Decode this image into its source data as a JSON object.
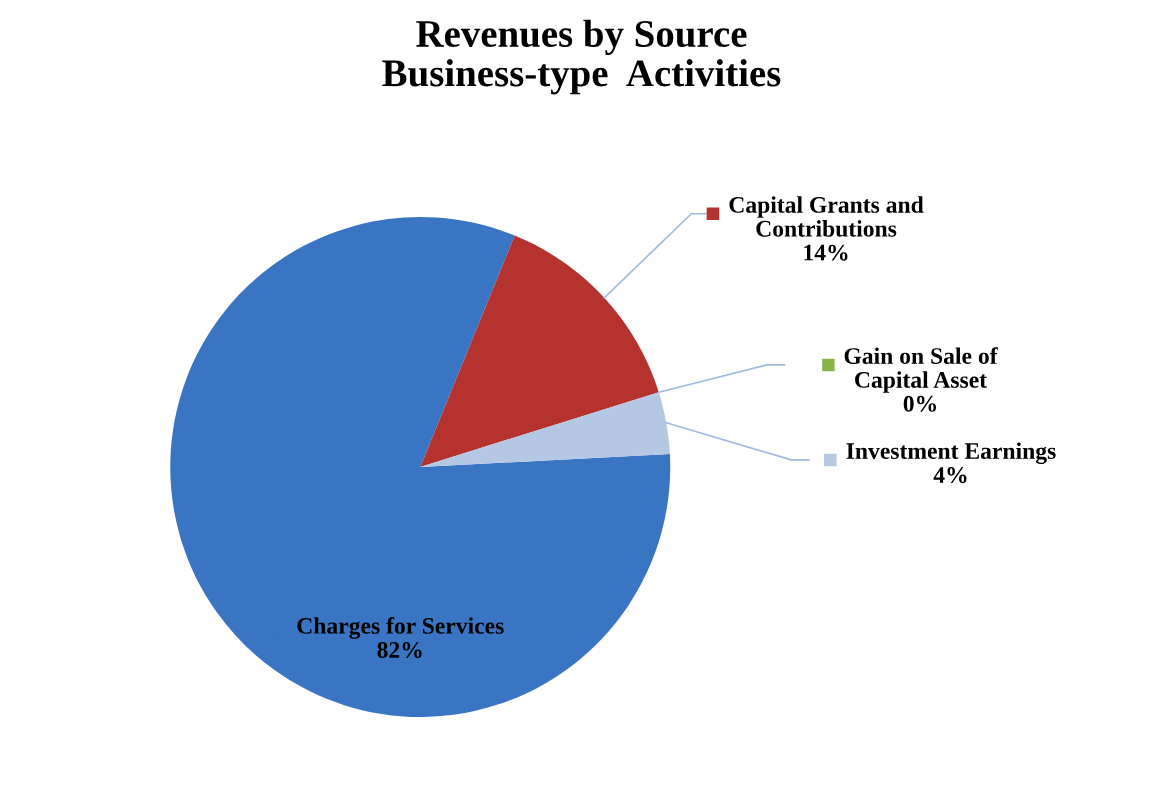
{
  "chart_data": {
    "type": "pie",
    "title": "Revenues by Source\nBusiness-type  Activities",
    "categories": [
      "Charges for Services",
      "Capital Grants and\nContributions",
      "Gain on Sale of\nCapital Asset",
      "Investment Earnings"
    ],
    "values": [
      82,
      14,
      0,
      4
    ],
    "value_labels": [
      "82%",
      "14%",
      "0%",
      "4%"
    ],
    "colors": [
      "#3a75c4",
      "#b5332f",
      "#8ab34a",
      "#b4c7e3"
    ],
    "legend": "right"
  }
}
